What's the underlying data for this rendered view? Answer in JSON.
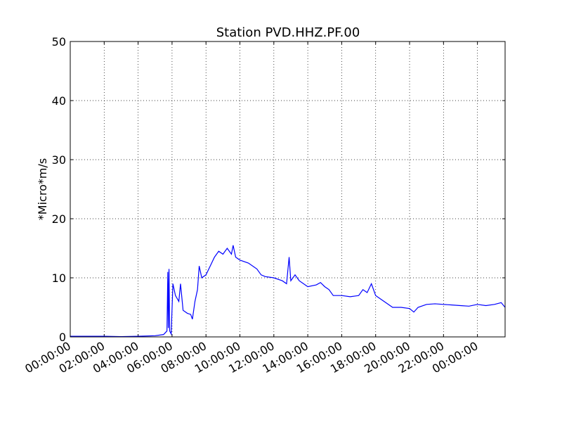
{
  "chart_data": {
    "type": "line",
    "title": "Station PVD.HHZ.PF.00",
    "y_label": "*Micro*m/s",
    "color": "#0000ff",
    "grid": true,
    "xlim": [
      0,
      25.63
    ],
    "ylim": [
      0,
      50
    ],
    "yticks": [
      0,
      10,
      20,
      30,
      40,
      50
    ],
    "xticks": [
      {
        "value": 0,
        "label": "00:00:00"
      },
      {
        "value": 2,
        "label": "02:00:00"
      },
      {
        "value": 4,
        "label": "04:00:00"
      },
      {
        "value": 6,
        "label": "06:00:00"
      },
      {
        "value": 8,
        "label": "08:00:00"
      },
      {
        "value": 10,
        "label": "10:00:00"
      },
      {
        "value": 12,
        "label": "12:00:00"
      },
      {
        "value": 14,
        "label": "14:00:00"
      },
      {
        "value": 16,
        "label": "16:00:00"
      },
      {
        "value": 18,
        "label": "18:00:00"
      },
      {
        "value": 20,
        "label": "20:00:00"
      },
      {
        "value": 22,
        "label": "22:00:00"
      },
      {
        "value": 24,
        "label": "00:00:00"
      }
    ],
    "x": [
      0,
      1,
      2,
      3,
      4,
      5,
      5.5,
      5.7,
      5.75,
      5.78,
      5.82,
      5.86,
      5.95,
      6.05,
      6.2,
      6.4,
      6.5,
      6.65,
      6.9,
      7.1,
      7.2,
      7.35,
      7.5,
      7.6,
      7.75,
      8,
      8.25,
      8.5,
      8.75,
      9,
      9.25,
      9.5,
      9.6,
      9.75,
      10,
      10.5,
      11,
      11.25,
      11.5,
      12,
      12.5,
      12.75,
      12.9,
      13,
      13.25,
      13.5,
      14,
      14.5,
      14.75,
      15,
      15.25,
      15.5,
      16,
      16.5,
      17,
      17.25,
      17.5,
      17.75,
      18,
      18.5,
      19,
      19.5,
      20,
      20.25,
      20.5,
      21,
      21.5,
      22,
      22.5,
      23,
      23.5,
      24,
      24.5,
      25,
      25.4,
      25.63
    ],
    "values": [
      0.1,
      0.1,
      0.1,
      0.05,
      0.1,
      0.2,
      0.4,
      1,
      11,
      1.5,
      11.5,
      1,
      0.5,
      9,
      7,
      6,
      9,
      4.5,
      4,
      3.8,
      3,
      6,
      8,
      12,
      10,
      10.5,
      12,
      13.5,
      14.5,
      14,
      15,
      14,
      15.5,
      13.5,
      13,
      12.5,
      11.5,
      10.5,
      10.2,
      10,
      9.5,
      9,
      13.5,
      9.5,
      10.5,
      9.5,
      8.5,
      8.8,
      9.2,
      8.5,
      8,
      7,
      7,
      6.8,
      7,
      8,
      7.5,
      9,
      7,
      6,
      5,
      5,
      4.8,
      4.2,
      5,
      5.5,
      5.6,
      5.5,
      5.4,
      5.3,
      5.2,
      5.5,
      5.3,
      5.5,
      5.8,
      5
    ]
  }
}
